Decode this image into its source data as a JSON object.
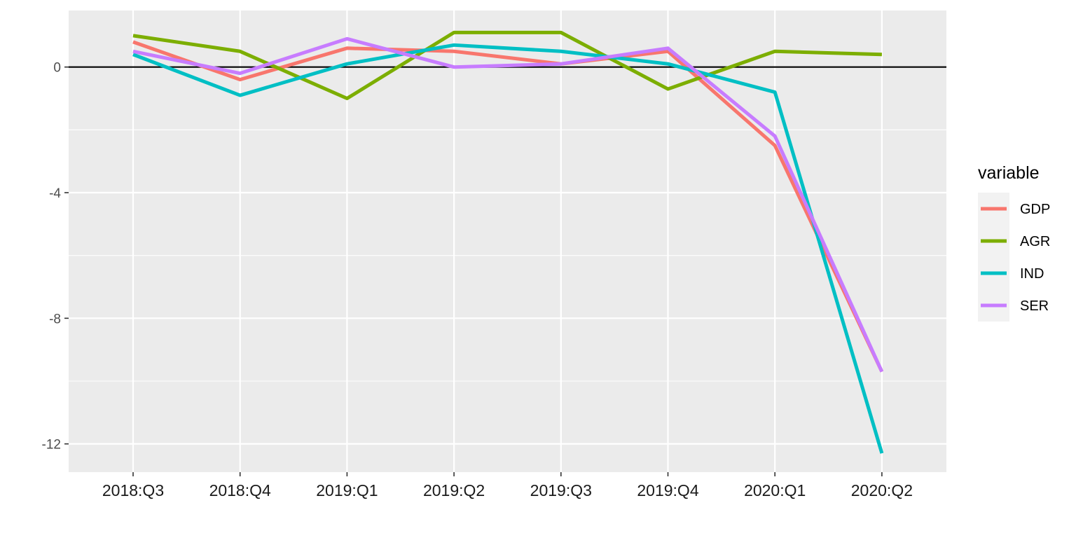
{
  "chart_data": {
    "type": "line",
    "title": "",
    "xlabel": "",
    "ylabel": "",
    "categories": [
      "2018:Q3",
      "2018:Q4",
      "2019:Q1",
      "2019:Q2",
      "2019:Q3",
      "2019:Q4",
      "2020:Q1",
      "2020:Q2"
    ],
    "y_ticks": [
      0,
      -4,
      -8,
      -12
    ],
    "y_tick_labels": [
      "0",
      "-4",
      "-8",
      "-12"
    ],
    "ylim": [
      -12.9,
      1.8
    ],
    "grid": true,
    "reference_line": {
      "y": 0,
      "color": "#000000"
    },
    "legend": {
      "title": "variable",
      "position": "right"
    },
    "series": [
      {
        "name": "GDP",
        "color": "#F8766D",
        "values": [
          0.8,
          -0.4,
          0.6,
          0.5,
          0.1,
          0.5,
          -2.5,
          -9.7
        ]
      },
      {
        "name": "AGR",
        "color": "#7CAE00",
        "values": [
          1.0,
          0.5,
          -1.0,
          1.1,
          1.1,
          -0.7,
          0.5,
          0.4
        ]
      },
      {
        "name": "IND",
        "color": "#00BFC4",
        "values": [
          0.4,
          -0.9,
          0.1,
          0.7,
          0.5,
          0.1,
          -0.8,
          -12.3
        ]
      },
      {
        "name": "SER",
        "color": "#C77CFF",
        "values": [
          0.5,
          -0.2,
          0.9,
          0.0,
          0.1,
          0.6,
          -2.2,
          -9.7
        ]
      }
    ]
  }
}
